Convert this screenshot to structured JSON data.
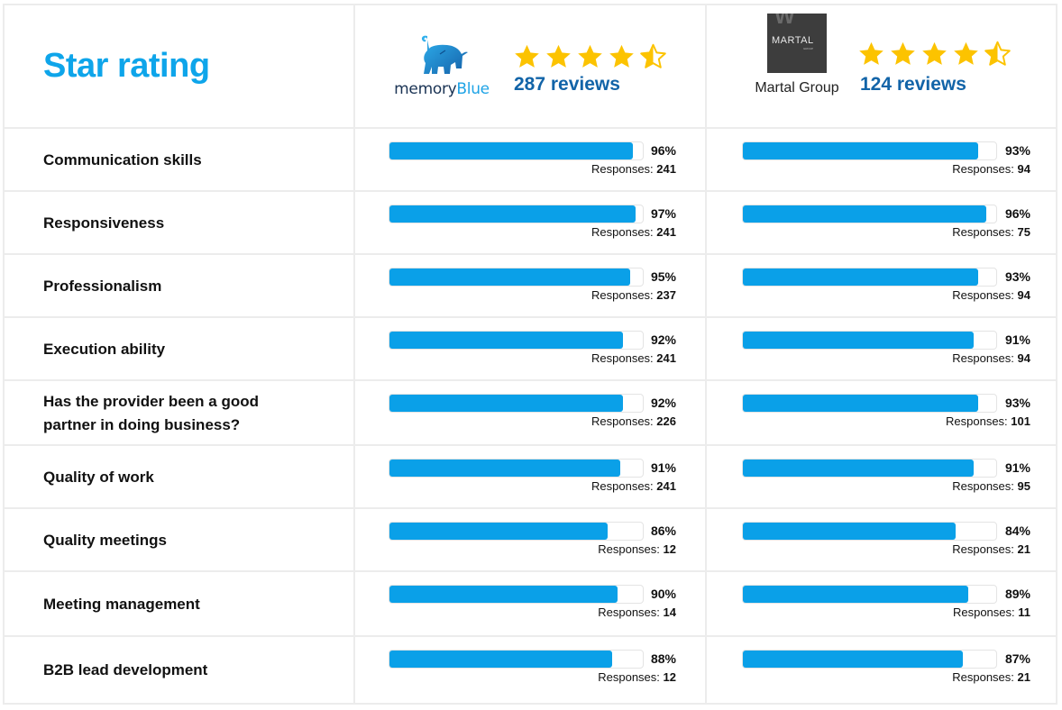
{
  "header": {
    "title": "Star rating",
    "providers": [
      {
        "name": "memoryBlue",
        "name_part1": "memory",
        "name_part2": "Blue",
        "logo_icon": "elephant-logo-icon",
        "rating": 4.5,
        "stars": [
          "full",
          "full",
          "full",
          "full",
          "half"
        ],
        "reviews_label": "287 reviews"
      },
      {
        "name": "Martal Group",
        "logo_text": "MARTAL",
        "logo_subtext": "GROUP",
        "logo_icon": "martal-logo-icon",
        "rating": 4.5,
        "stars": [
          "full",
          "full",
          "full",
          "full",
          "half"
        ],
        "reviews_label": "124 reviews"
      }
    ]
  },
  "colors": {
    "title": "#0ea5ea",
    "bar": "#0aa0e8",
    "reviews": "#1264a8",
    "star": "#fcc300",
    "border": "#ececec"
  },
  "responses_prefix": "Responses:",
  "rows": [
    {
      "label": "Communication skills",
      "a": {
        "pct": "96%",
        "value": 96,
        "responses": "241"
      },
      "b": {
        "pct": "93%",
        "value": 93,
        "responses": "94"
      }
    },
    {
      "label": "Responsiveness",
      "a": {
        "pct": "97%",
        "value": 97,
        "responses": "241"
      },
      "b": {
        "pct": "96%",
        "value": 96,
        "responses": "75"
      }
    },
    {
      "label": "Professionalism",
      "a": {
        "pct": "95%",
        "value": 95,
        "responses": "237"
      },
      "b": {
        "pct": "93%",
        "value": 93,
        "responses": "94"
      }
    },
    {
      "label": "Execution ability",
      "a": {
        "pct": "92%",
        "value": 92,
        "responses": "241"
      },
      "b": {
        "pct": "91%",
        "value": 91,
        "responses": "94"
      }
    },
    {
      "label": "Has the provider been a good partner in doing business?",
      "a": {
        "pct": "92%",
        "value": 92,
        "responses": "226"
      },
      "b": {
        "pct": "93%",
        "value": 93,
        "responses": "101"
      }
    },
    {
      "label": "Quality of work",
      "a": {
        "pct": "91%",
        "value": 91,
        "responses": "241"
      },
      "b": {
        "pct": "91%",
        "value": 91,
        "responses": "95"
      }
    },
    {
      "label": "Quality meetings",
      "a": {
        "pct": "86%",
        "value": 86,
        "responses": "12"
      },
      "b": {
        "pct": "84%",
        "value": 84,
        "responses": "21"
      }
    },
    {
      "label": "Meeting management",
      "a": {
        "pct": "90%",
        "value": 90,
        "responses": "14"
      },
      "b": {
        "pct": "89%",
        "value": 89,
        "responses": "11"
      }
    },
    {
      "label": "B2B lead development",
      "a": {
        "pct": "88%",
        "value": 88,
        "responses": "12"
      },
      "b": {
        "pct": "87%",
        "value": 87,
        "responses": "21"
      }
    }
  ],
  "chart_data": {
    "type": "bar",
    "title": "Star rating",
    "orientation": "horizontal",
    "categories": [
      "Communication skills",
      "Responsiveness",
      "Professionalism",
      "Execution ability",
      "Has the provider been a good partner in doing business?",
      "Quality of work",
      "Quality meetings",
      "Meeting management",
      "B2B lead development"
    ],
    "series": [
      {
        "name": "memoryBlue",
        "reviews": 287,
        "rating": 4.5,
        "values": [
          96,
          97,
          95,
          92,
          92,
          91,
          86,
          90,
          88
        ],
        "responses": [
          241,
          241,
          237,
          241,
          226,
          241,
          12,
          14,
          12
        ]
      },
      {
        "name": "Martal Group",
        "reviews": 124,
        "rating": 4.5,
        "values": [
          93,
          96,
          93,
          91,
          93,
          91,
          84,
          89,
          87
        ],
        "responses": [
          94,
          75,
          94,
          94,
          101,
          95,
          21,
          11,
          21
        ]
      }
    ],
    "xlabel": "",
    "ylabel": "",
    "xlim": [
      0,
      100
    ],
    "value_format": "percent",
    "grid": false,
    "legend": "provider logos in header row"
  }
}
